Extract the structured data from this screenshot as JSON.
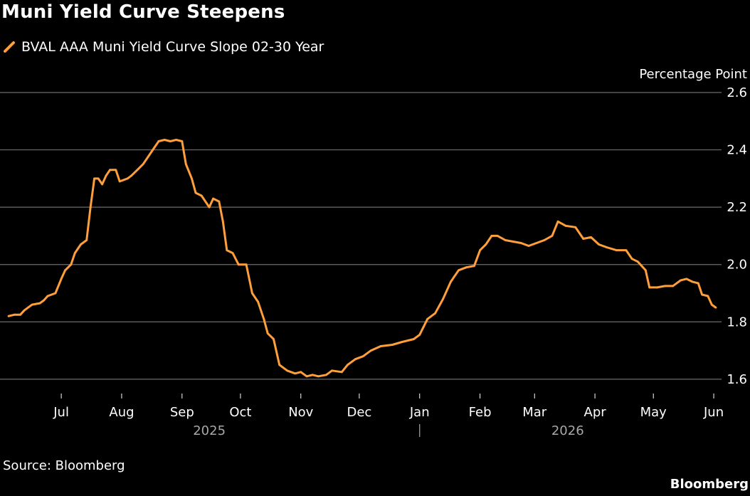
{
  "title": "Muni Yield Curve Steepens",
  "legend": {
    "label": "BVAL AAA Muni Yield Curve Slope 02-30 Year",
    "icon": "line-swatch-icon"
  },
  "source": "Source: Bloomberg",
  "brand": "Bloomberg",
  "colors": {
    "background": "#000000",
    "line": "#ff9f3b",
    "grid": "#6b6b6b",
    "text": "#ffffff",
    "year_text": "#a8a8a8"
  },
  "chart_data": {
    "type": "line",
    "title": "Muni Yield Curve Steepens",
    "ylabel": "Percentage Point",
    "ylim": [
      1.55,
      2.6
    ],
    "y_ticks": [
      "1.6",
      "1.8",
      "2.0",
      "2.2",
      "2.4",
      "2.6"
    ],
    "grid": "horizontal",
    "legend_position": "top-left",
    "x_range": [
      "2025-06-01",
      "2026-06-05"
    ],
    "x_ticks": [
      {
        "date": "2025-07-01",
        "label": "Jul"
      },
      {
        "date": "2025-08-01",
        "label": "Aug"
      },
      {
        "date": "2025-09-01",
        "label": "Sep"
      },
      {
        "date": "2025-10-01",
        "label": "Oct"
      },
      {
        "date": "2025-11-01",
        "label": "Nov"
      },
      {
        "date": "2025-12-01",
        "label": "Dec"
      },
      {
        "date": "2026-01-01",
        "label": "Jan"
      },
      {
        "date": "2026-02-01",
        "label": "Feb"
      },
      {
        "date": "2026-03-01",
        "label": "Mar"
      },
      {
        "date": "2026-04-01",
        "label": "Apr"
      },
      {
        "date": "2026-05-01",
        "label": "May"
      },
      {
        "date": "2026-06-01",
        "label": "Jun"
      }
    ],
    "year_labels": [
      {
        "label": "2025",
        "date": "2025-09-15"
      },
      {
        "label": "2026",
        "date": "2026-03-18"
      }
    ],
    "year_divider_date": "2026-01-01",
    "series": [
      {
        "name": "BVAL AAA Muni Yield Curve Slope 02-30 Year",
        "points": [
          [
            "2025-06-04",
            1.82
          ],
          [
            "2025-06-07",
            1.825
          ],
          [
            "2025-06-10",
            1.825
          ],
          [
            "2025-06-12",
            1.84
          ],
          [
            "2025-06-14",
            1.85
          ],
          [
            "2025-06-16",
            1.86
          ],
          [
            "2025-06-20",
            1.865
          ],
          [
            "2025-06-22",
            1.875
          ],
          [
            "2025-06-24",
            1.89
          ],
          [
            "2025-06-28",
            1.9
          ],
          [
            "2025-07-01",
            1.95
          ],
          [
            "2025-07-03",
            1.98
          ],
          [
            "2025-07-06",
            2.0
          ],
          [
            "2025-07-08",
            2.04
          ],
          [
            "2025-07-11",
            2.07
          ],
          [
            "2025-07-14",
            2.085
          ],
          [
            "2025-07-16",
            2.2
          ],
          [
            "2025-07-18",
            2.3
          ],
          [
            "2025-07-20",
            2.3
          ],
          [
            "2025-07-22",
            2.28
          ],
          [
            "2025-07-24",
            2.31
          ],
          [
            "2025-07-26",
            2.33
          ],
          [
            "2025-07-29",
            2.33
          ],
          [
            "2025-07-31",
            2.29
          ],
          [
            "2025-08-04",
            2.3
          ],
          [
            "2025-08-06",
            2.31
          ],
          [
            "2025-08-09",
            2.33
          ],
          [
            "2025-08-12",
            2.35
          ],
          [
            "2025-08-15",
            2.38
          ],
          [
            "2025-08-18",
            2.41
          ],
          [
            "2025-08-20",
            2.43
          ],
          [
            "2025-08-23",
            2.435
          ],
          [
            "2025-08-26",
            2.43
          ],
          [
            "2025-08-29",
            2.435
          ],
          [
            "2025-09-01",
            2.43
          ],
          [
            "2025-09-03",
            2.35
          ],
          [
            "2025-09-06",
            2.3
          ],
          [
            "2025-09-08",
            2.25
          ],
          [
            "2025-09-11",
            2.24
          ],
          [
            "2025-09-15",
            2.2
          ],
          [
            "2025-09-17",
            2.23
          ],
          [
            "2025-09-20",
            2.22
          ],
          [
            "2025-09-22",
            2.15
          ],
          [
            "2025-09-24",
            2.05
          ],
          [
            "2025-09-27",
            2.04
          ],
          [
            "2025-09-30",
            2.0
          ],
          [
            "2025-10-04",
            2.0
          ],
          [
            "2025-10-07",
            1.9
          ],
          [
            "2025-10-10",
            1.87
          ],
          [
            "2025-10-13",
            1.81
          ],
          [
            "2025-10-15",
            1.76
          ],
          [
            "2025-10-18",
            1.74
          ],
          [
            "2025-10-21",
            1.65
          ],
          [
            "2025-10-25",
            1.63
          ],
          [
            "2025-10-29",
            1.62
          ],
          [
            "2025-11-01",
            1.625
          ],
          [
            "2025-11-04",
            1.61
          ],
          [
            "2025-11-07",
            1.615
          ],
          [
            "2025-11-10",
            1.61
          ],
          [
            "2025-11-14",
            1.615
          ],
          [
            "2025-11-17",
            1.63
          ],
          [
            "2025-11-22",
            1.625
          ],
          [
            "2025-11-25",
            1.65
          ],
          [
            "2025-11-29",
            1.67
          ],
          [
            "2025-12-03",
            1.68
          ],
          [
            "2025-12-07",
            1.7
          ],
          [
            "2025-12-12",
            1.715
          ],
          [
            "2025-12-18",
            1.72
          ],
          [
            "2025-12-23",
            1.73
          ],
          [
            "2025-12-29",
            1.74
          ],
          [
            "2026-01-01",
            1.755
          ],
          [
            "2026-01-05",
            1.81
          ],
          [
            "2026-01-09",
            1.83
          ],
          [
            "2026-01-13",
            1.88
          ],
          [
            "2026-01-17",
            1.94
          ],
          [
            "2026-01-21",
            1.98
          ],
          [
            "2026-01-25",
            1.99
          ],
          [
            "2026-01-29",
            1.995
          ],
          [
            "2026-02-01",
            2.05
          ],
          [
            "2026-02-04",
            2.07
          ],
          [
            "2026-02-07",
            2.1
          ],
          [
            "2026-02-10",
            2.1
          ],
          [
            "2026-02-14",
            2.085
          ],
          [
            "2026-02-18",
            2.08
          ],
          [
            "2026-02-22",
            2.075
          ],
          [
            "2026-02-26",
            2.065
          ],
          [
            "2026-03-02",
            2.075
          ],
          [
            "2026-03-06",
            2.085
          ],
          [
            "2026-03-10",
            2.1
          ],
          [
            "2026-03-13",
            2.15
          ],
          [
            "2026-03-17",
            2.135
          ],
          [
            "2026-03-22",
            2.13
          ],
          [
            "2026-03-26",
            2.09
          ],
          [
            "2026-03-30",
            2.095
          ],
          [
            "2026-04-03",
            2.07
          ],
          [
            "2026-04-07",
            2.06
          ],
          [
            "2026-04-12",
            2.05
          ],
          [
            "2026-04-17",
            2.05
          ],
          [
            "2026-04-20",
            2.02
          ],
          [
            "2026-04-23",
            2.01
          ],
          [
            "2026-04-27",
            1.98
          ],
          [
            "2026-04-29",
            1.92
          ],
          [
            "2026-05-03",
            1.92
          ],
          [
            "2026-05-07",
            1.925
          ],
          [
            "2026-05-11",
            1.925
          ],
          [
            "2026-05-15",
            1.945
          ],
          [
            "2026-05-18",
            1.95
          ],
          [
            "2026-05-21",
            1.94
          ],
          [
            "2026-05-24",
            1.935
          ],
          [
            "2026-05-26",
            1.895
          ],
          [
            "2026-05-29",
            1.89
          ],
          [
            "2026-05-31",
            1.86
          ],
          [
            "2026-06-02",
            1.85
          ]
        ]
      }
    ]
  }
}
